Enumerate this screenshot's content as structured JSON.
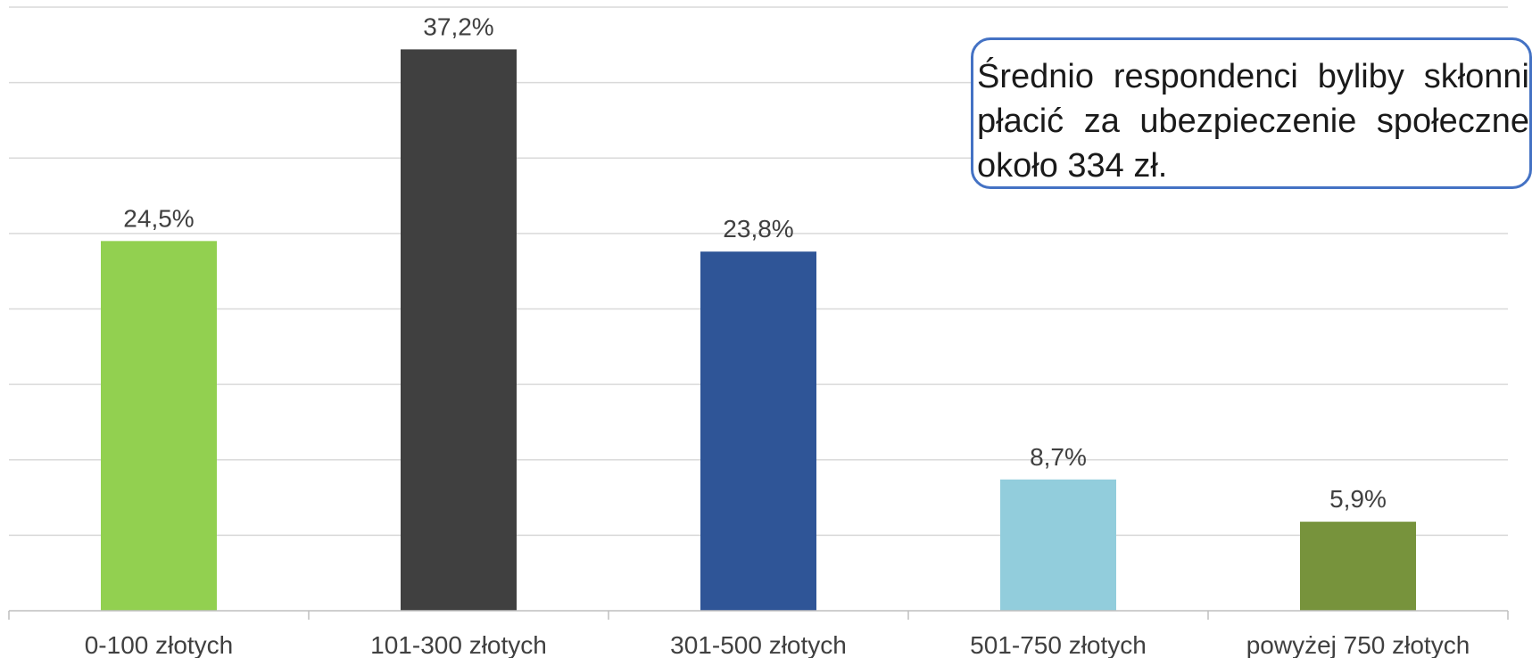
{
  "chart_data": {
    "type": "bar",
    "categories": [
      "0-100 złotych",
      "101-300 złotych",
      "301-500 złotych",
      "501-750 złotych",
      "powyżej 750 złotych"
    ],
    "values": [
      24.5,
      37.2,
      23.8,
      8.7,
      5.9
    ],
    "value_labels": [
      "24,5%",
      "37,2%",
      "23,8%",
      "8,7%",
      "5,9%"
    ],
    "bar_colors": [
      "#92d050",
      "#404040",
      "#2f5597",
      "#92cddc",
      "#77933c"
    ],
    "ylim": [
      0,
      40
    ],
    "grid": true,
    "legend": "none",
    "title": "",
    "xlabel": "",
    "ylabel": ""
  },
  "callout": {
    "text": "Średnio respondenci byliby skłonni płacić za ubezpieczenie społeczne około 334 zł.",
    "border_color": "#4472c4"
  }
}
